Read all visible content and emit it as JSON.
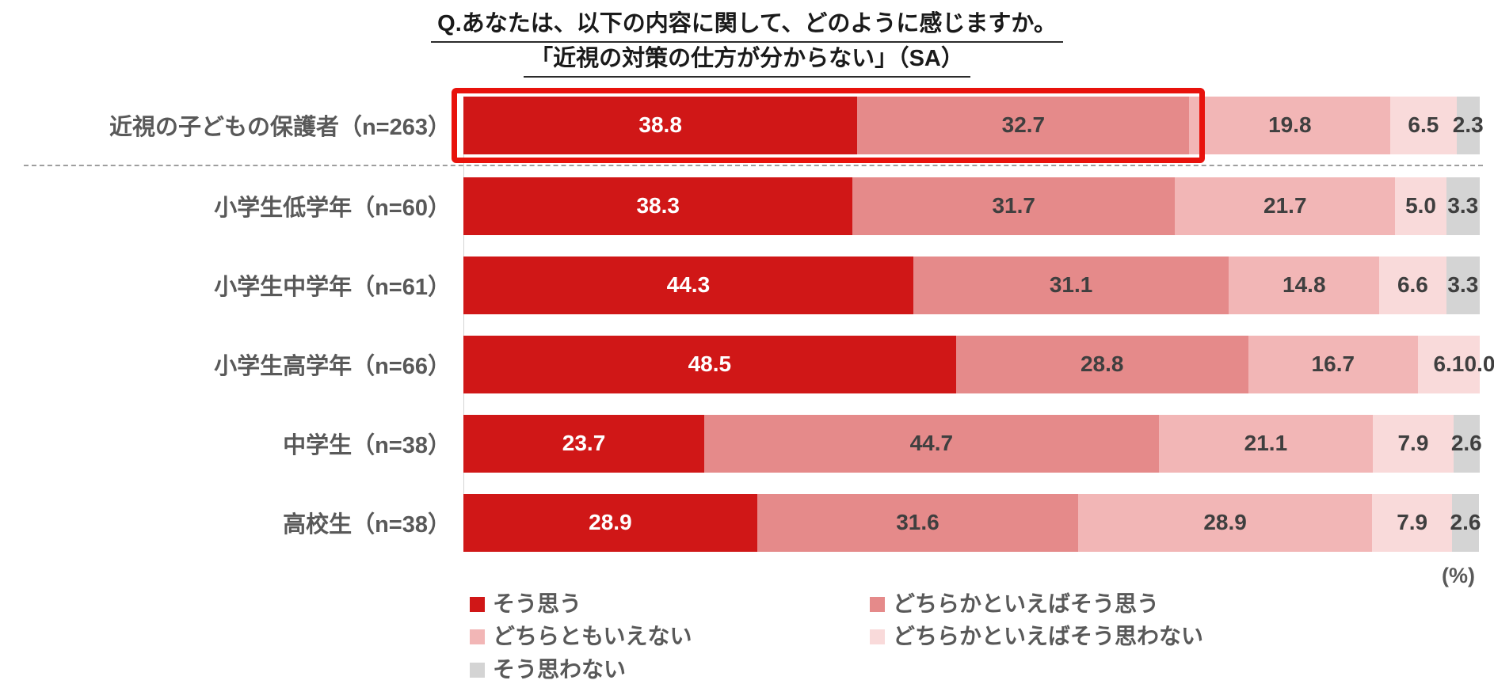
{
  "title": {
    "line1": "Q.あなたは、以下の内容に関して、どのように感じますか。",
    "line2": "「近視の対策の仕方が分からない」（SA）"
  },
  "unit_label": "(%)",
  "colors": {
    "value_text_on_dark": "#ffffff",
    "value_text_on_light": "#3f3f3f",
    "label_text": "#595959",
    "highlight_border": "#e8120c",
    "separator": "#9e9e9e"
  },
  "highlight": {
    "row_index": 0,
    "segments_covered": 2
  },
  "chart_data": {
    "type": "bar",
    "orientation": "horizontal",
    "stacked": true,
    "unit": "%",
    "xlim": [
      0,
      100
    ],
    "grid": false,
    "legend_position": "bottom",
    "legend_columns": 2,
    "categories": [
      "近視の子どもの保護者（n=263）",
      "小学生低学年（n=60）",
      "小学生中学年（n=61）",
      "小学生高学年（n=66）",
      "中学生（n=38）",
      "高校生（n=38）"
    ],
    "series": [
      {
        "name": "そう思う",
        "color": "#d01717",
        "values": [
          38.8,
          38.3,
          44.3,
          48.5,
          23.7,
          28.9
        ]
      },
      {
        "name": "どちらかといえばそう思う",
        "color": "#e58a8a",
        "values": [
          32.7,
          31.7,
          31.1,
          28.8,
          44.7,
          31.6
        ]
      },
      {
        "name": "どちらともいえない",
        "color": "#f2b6b6",
        "values": [
          19.8,
          21.7,
          14.8,
          16.7,
          21.1,
          28.9
        ]
      },
      {
        "name": "どちらかといえばそう思わない",
        "color": "#f9dada",
        "values": [
          6.5,
          5.0,
          6.6,
          6.1,
          7.9,
          7.9
        ]
      },
      {
        "name": "そう思わない",
        "color": "#d4d4d4",
        "values": [
          2.3,
          3.3,
          3.3,
          0.0,
          2.6,
          2.6
        ]
      }
    ]
  }
}
